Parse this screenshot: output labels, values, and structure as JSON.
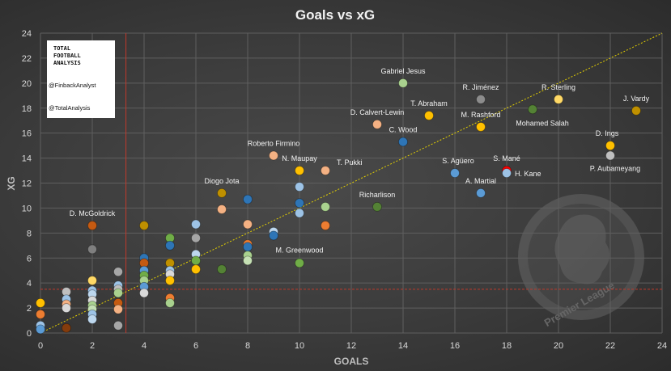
{
  "chart_data": {
    "type": "scatter",
    "title": "Goals vs xG",
    "xlabel": "GOALS",
    "ylabel": "XG",
    "xlim": [
      0,
      24
    ],
    "ylim": [
      0,
      24
    ],
    "xticks": [
      0,
      2,
      4,
      6,
      8,
      10,
      12,
      14,
      16,
      18,
      20,
      22,
      24
    ],
    "yticks": [
      0,
      2,
      4,
      6,
      8,
      10,
      12,
      14,
      16,
      18,
      20,
      22,
      24
    ],
    "grid": true,
    "reference_lines": {
      "x": 3.3,
      "y": 3.5,
      "diagonal": "y = x"
    },
    "labeled_points": [
      {
        "name": "Gabriel Jesus",
        "x": 14,
        "y": 20.0,
        "color": "#a9d18e"
      },
      {
        "name": "R. Jiménez",
        "x": 17,
        "y": 18.7,
        "color": "#8c8c8c"
      },
      {
        "name": "R. Sterling",
        "x": 20,
        "y": 18.7,
        "color": "#ffd966"
      },
      {
        "name": "J. Vardy",
        "x": 23,
        "y": 17.8,
        "color": "#bf9000"
      },
      {
        "name": "T. Abraham",
        "x": 15,
        "y": 17.4,
        "color": "#ffc000"
      },
      {
        "name": "D. Calvert-Lewin",
        "x": 13,
        "y": 16.7,
        "color": "#f4b183"
      },
      {
        "name": "M. Rashford",
        "x": 17,
        "y": 16.5,
        "color": "#ffc000"
      },
      {
        "name": "Mohamed Salah",
        "x": 19,
        "y": 17.9,
        "color": "#548235"
      },
      {
        "name": "C. Wood",
        "x": 14,
        "y": 15.3,
        "color": "#2e75b6"
      },
      {
        "name": "D. Ings",
        "x": 22,
        "y": 15.0,
        "color": "#ffc000"
      },
      {
        "name": "P. Aubameyang",
        "x": 22,
        "y": 14.2,
        "color": "#bfbfbf"
      },
      {
        "name": "Roberto Firmino",
        "x": 9,
        "y": 14.2,
        "color": "#f4b183"
      },
      {
        "name": "N. Maupay",
        "x": 10,
        "y": 13.0,
        "color": "#ffc000"
      },
      {
        "name": "T. Pukki",
        "x": 11,
        "y": 13.0,
        "color": "#f4b183"
      },
      {
        "name": "S. Agüero",
        "x": 16,
        "y": 12.8,
        "color": "#5b9bd5"
      },
      {
        "name": "S. Mané",
        "x": 18,
        "y": 13.0,
        "color": "#ff0000"
      },
      {
        "name": "H. Kane",
        "x": 18,
        "y": 12.8,
        "color": "#9dc3e6"
      },
      {
        "name": "Diogo Jota",
        "x": 7,
        "y": 11.2,
        "color": "#bf9000"
      },
      {
        "name": "A. Martial",
        "x": 17,
        "y": 11.2,
        "color": "#5b9bd5"
      },
      {
        "name": "Richarlison",
        "x": 13,
        "y": 10.1,
        "color": "#548235"
      },
      {
        "name": "D. McGoldrick",
        "x": 2,
        "y": 8.6,
        "color": "#c55a11"
      },
      {
        "name": "M. Greenwood",
        "x": 10,
        "y": 5.6,
        "color": "#70ad47"
      }
    ],
    "other_points": [
      {
        "x": 0,
        "y": 2.4,
        "color": "#ffc000"
      },
      {
        "x": 0,
        "y": 1.5,
        "color": "#ed7d31"
      },
      {
        "x": 0,
        "y": 0.6,
        "color": "#9dc3e6"
      },
      {
        "x": 0,
        "y": 0.3,
        "color": "#5b9bd5"
      },
      {
        "x": 1,
        "y": 3.3,
        "color": "#bfbfbf"
      },
      {
        "x": 1,
        "y": 2.7,
        "color": "#9dc3e6"
      },
      {
        "x": 1,
        "y": 2.3,
        "color": "#f4b183"
      },
      {
        "x": 1,
        "y": 2.0,
        "color": "#d9d9d9"
      },
      {
        "x": 1,
        "y": 0.4,
        "color": "#843c0c"
      },
      {
        "x": 2,
        "y": 6.7,
        "color": "#7f7f7f"
      },
      {
        "x": 2,
        "y": 4.2,
        "color": "#ffd966"
      },
      {
        "x": 2,
        "y": 3.4,
        "color": "#9dc3e6"
      },
      {
        "x": 2,
        "y": 3.1,
        "color": "#bdd7ee"
      },
      {
        "x": 2,
        "y": 2.6,
        "color": "#d9d9d9"
      },
      {
        "x": 2,
        "y": 2.2,
        "color": "#a9d18e"
      },
      {
        "x": 2,
        "y": 1.9,
        "color": "#c5e0b4"
      },
      {
        "x": 2,
        "y": 1.5,
        "color": "#9dc3e6"
      },
      {
        "x": 2,
        "y": 1.1,
        "color": "#bdd7ee"
      },
      {
        "x": 3,
        "y": 4.9,
        "color": "#a6a6a6"
      },
      {
        "x": 3,
        "y": 3.8,
        "color": "#9dc3e6"
      },
      {
        "x": 3,
        "y": 3.5,
        "color": "#bfbfbf"
      },
      {
        "x": 3,
        "y": 3.2,
        "color": "#a9d18e"
      },
      {
        "x": 3,
        "y": 2.4,
        "color": "#c55a11"
      },
      {
        "x": 3,
        "y": 1.9,
        "color": "#f4b183"
      },
      {
        "x": 3,
        "y": 0.6,
        "color": "#a6a6a6"
      },
      {
        "x": 4,
        "y": 8.6,
        "color": "#bf9000"
      },
      {
        "x": 4,
        "y": 6.0,
        "color": "#2e75b6"
      },
      {
        "x": 4,
        "y": 5.6,
        "color": "#c55a11"
      },
      {
        "x": 4,
        "y": 5.0,
        "color": "#5b9bd5"
      },
      {
        "x": 4,
        "y": 4.6,
        "color": "#70ad47"
      },
      {
        "x": 4,
        "y": 4.2,
        "color": "#a9d18e"
      },
      {
        "x": 4,
        "y": 3.7,
        "color": "#5b9bd5"
      },
      {
        "x": 4,
        "y": 3.2,
        "color": "#d9d9d9"
      },
      {
        "x": 5,
        "y": 7.6,
        "color": "#70ad47"
      },
      {
        "x": 5,
        "y": 7.0,
        "color": "#2e75b6"
      },
      {
        "x": 5,
        "y": 5.6,
        "color": "#bf9000"
      },
      {
        "x": 5,
        "y": 5.0,
        "color": "#9dc3e6"
      },
      {
        "x": 5,
        "y": 4.7,
        "color": "#d9d9d9"
      },
      {
        "x": 5,
        "y": 4.2,
        "color": "#ffc000"
      },
      {
        "x": 5,
        "y": 2.8,
        "color": "#ed7d31"
      },
      {
        "x": 5,
        "y": 2.4,
        "color": "#a9d18e"
      },
      {
        "x": 6,
        "y": 8.7,
        "color": "#9dc3e6"
      },
      {
        "x": 6,
        "y": 7.6,
        "color": "#a6a6a6"
      },
      {
        "x": 6,
        "y": 6.3,
        "color": "#bdd7ee"
      },
      {
        "x": 6,
        "y": 5.8,
        "color": "#70ad47"
      },
      {
        "x": 6,
        "y": 5.1,
        "color": "#ffc000"
      },
      {
        "x": 7,
        "y": 9.9,
        "color": "#f4b183"
      },
      {
        "x": 7,
        "y": 5.1,
        "color": "#548235"
      },
      {
        "x": 8,
        "y": 10.7,
        "color": "#2e75b6"
      },
      {
        "x": 8,
        "y": 8.7,
        "color": "#f4b183"
      },
      {
        "x": 8,
        "y": 7.1,
        "color": "#ed7d31"
      },
      {
        "x": 8,
        "y": 6.9,
        "color": "#2e75b6"
      },
      {
        "x": 8,
        "y": 6.2,
        "color": "#a9d18e"
      },
      {
        "x": 8,
        "y": 5.8,
        "color": "#c5e0b4"
      },
      {
        "x": 9,
        "y": 8.1,
        "color": "#bdd7ee"
      },
      {
        "x": 9,
        "y": 7.8,
        "color": "#2e75b6"
      },
      {
        "x": 10,
        "y": 11.7,
        "color": "#9dc3e6"
      },
      {
        "x": 10,
        "y": 10.4,
        "color": "#2e75b6"
      },
      {
        "x": 10,
        "y": 9.6,
        "color": "#9dc3e6"
      },
      {
        "x": 11,
        "y": 10.1,
        "color": "#a9d18e"
      },
      {
        "x": 11,
        "y": 8.6,
        "color": "#ed7d31"
      }
    ]
  },
  "branding": {
    "logo_lines": [
      "TOTAL",
      "FOOTBALL",
      "ANALYSIS"
    ],
    "handle_1": "@FinbackAnalyst",
    "handle_2": "@TotalAnalysis",
    "watermark": "Premier League"
  }
}
